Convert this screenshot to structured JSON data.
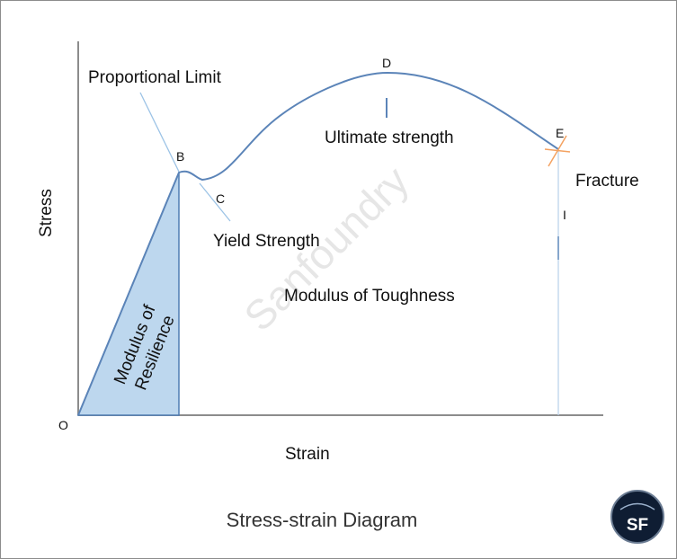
{
  "diagram": {
    "watermark": "Sanfoundry",
    "axes": {
      "y_label": "Stress",
      "x_label": "Strain",
      "origin_label": "O"
    },
    "points": {
      "b": "B",
      "c": "C",
      "d": "D",
      "e": "E"
    },
    "labels": {
      "proportional_limit": "Proportional Limit",
      "yield_strength": "Yield Strength",
      "ultimate_strength": "Ultimate strength",
      "fracture": "Fracture",
      "modulus_of_toughness": "Modulus of Toughness",
      "resilience_line1": "Modulus of",
      "resilience_line2": "Resilience",
      "fracture_marker": "I"
    },
    "caption": "Stress-strain Diagram",
    "logo": {
      "text": "SF"
    },
    "colors": {
      "curve": "#5b84b8",
      "resilience_fill": "#bdd7ee",
      "fracture_cross": "#f4a261",
      "axis": "#8c8c8c"
    }
  }
}
